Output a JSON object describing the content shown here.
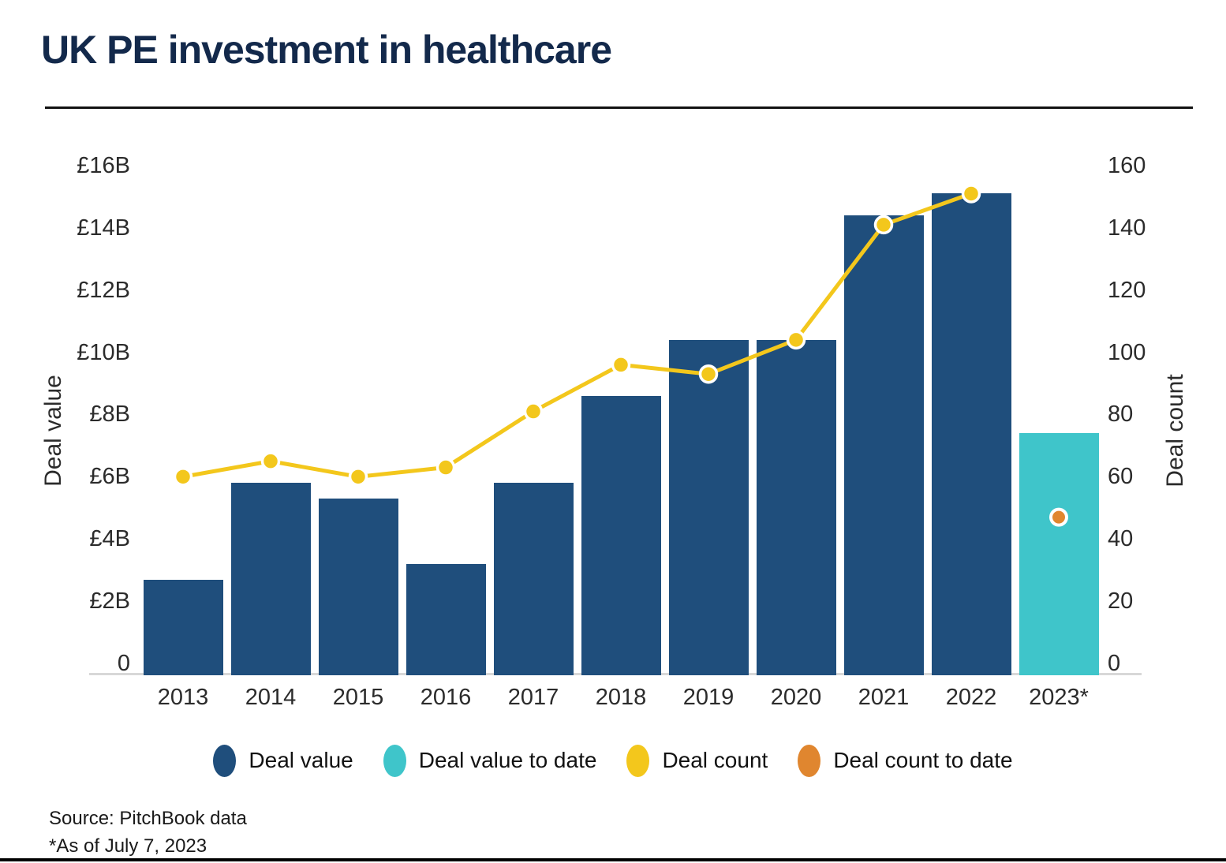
{
  "header": {
    "title": "UK PE investment in healthcare"
  },
  "chart_data": {
    "type": "bar+line combo (dual axis)",
    "categories": [
      "2013",
      "2014",
      "2015",
      "2016",
      "2017",
      "2018",
      "2019",
      "2020",
      "2021",
      "2022",
      "2023*"
    ],
    "left_axis": {
      "title": "Deal value",
      "unit": "GBP billions",
      "range": [
        0,
        16
      ],
      "ticks": [
        {
          "label": "£16B",
          "value": 16
        },
        {
          "label": "£14B",
          "value": 14
        },
        {
          "label": "£12B",
          "value": 12
        },
        {
          "label": "£10B",
          "value": 10
        },
        {
          "label": "£8B",
          "value": 8
        },
        {
          "label": "£6B",
          "value": 6
        },
        {
          "label": "£4B",
          "value": 4
        },
        {
          "label": "£2B",
          "value": 2
        },
        {
          "label": "0",
          "value": 0
        }
      ]
    },
    "right_axis": {
      "title": "Deal count",
      "range": [
        0,
        160
      ],
      "ticks": [
        {
          "label": "160",
          "value": 160
        },
        {
          "label": "140",
          "value": 140
        },
        {
          "label": "120",
          "value": 120
        },
        {
          "label": "100",
          "value": 100
        },
        {
          "label": "80",
          "value": 80
        },
        {
          "label": "60",
          "value": 60
        },
        {
          "label": "40",
          "value": 40
        },
        {
          "label": "20",
          "value": 20
        },
        {
          "label": "0",
          "value": 0
        }
      ]
    },
    "series": [
      {
        "name": "Deal value",
        "type": "bar",
        "axis": "left",
        "color": "#1F4E7C",
        "values": [
          2.7,
          5.8,
          5.3,
          3.2,
          5.8,
          8.6,
          10.4,
          10.4,
          14.4,
          15.1,
          null
        ]
      },
      {
        "name": "Deal value to date",
        "type": "bar",
        "axis": "left",
        "color": "#3FC5CA",
        "values": [
          null,
          null,
          null,
          null,
          null,
          null,
          null,
          null,
          null,
          null,
          7.4
        ]
      },
      {
        "name": "Deal count",
        "type": "line",
        "axis": "right",
        "color": "#F3C71C",
        "marker_edge": "#FFFFFF",
        "values": [
          60,
          65,
          60,
          63,
          81,
          96,
          93,
          104,
          141,
          151,
          null
        ]
      },
      {
        "name": "Deal count to date",
        "type": "point",
        "axis": "right",
        "color": "#E0862F",
        "marker_edge": "#FFFFFF",
        "values": [
          null,
          null,
          null,
          null,
          null,
          null,
          null,
          null,
          null,
          null,
          47
        ]
      }
    ],
    "grid": false,
    "legend_position": "bottom"
  },
  "legend": {
    "items": [
      {
        "label": "Deal value",
        "color": "#1F4E7C"
      },
      {
        "label": "Deal value to date",
        "color": "#3FC5CA"
      },
      {
        "label": "Deal count",
        "color": "#F3C71C"
      },
      {
        "label": "Deal count to date",
        "color": "#E0862F"
      }
    ]
  },
  "footer": {
    "source": "Source: PitchBook data",
    "note": "*As of July 7, 2023"
  },
  "colors": {
    "title_text": "#13294B",
    "axis_text": "#2B2B2B",
    "axis_baseline": "#D8D8D8",
    "rule": "#000000"
  }
}
